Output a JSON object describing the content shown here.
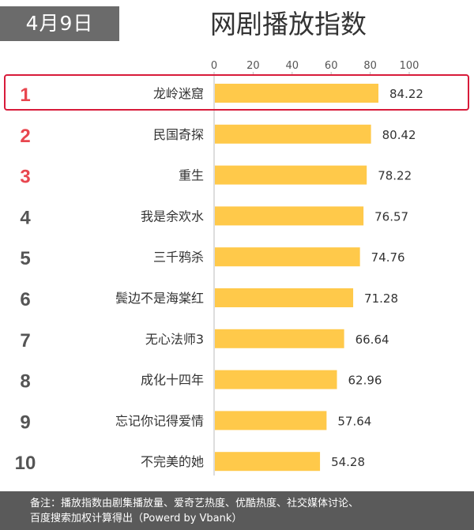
{
  "date_badge": "4月9日",
  "footer": {
    "line1": "备注：播放指数由剧集播放量、爱奇艺热度、优酷热度、社交媒体讨论、",
    "line2": "百度搜索加权计算得出（Powerd by Vbank）"
  },
  "colors": {
    "bar": "#ffc94a",
    "rank_top3": "#e8464f",
    "rank_other": "#555555",
    "highlight_border": "#d81b3a",
    "axis": "#bbbbbb"
  },
  "chart_data": {
    "type": "bar",
    "orientation": "horizontal",
    "title": "网剧播放指数",
    "xlim": [
      0,
      100
    ],
    "ticks": [
      0,
      20,
      40,
      60,
      80,
      100
    ],
    "ranks": [
      "1",
      "2",
      "3",
      "4",
      "5",
      "6",
      "7",
      "8",
      "9",
      "10"
    ],
    "categories": [
      "龙岭迷窟",
      "民国奇探",
      "重生",
      "我是余欢水",
      "三千鸦杀",
      "鬓边不是海棠红",
      "无心法师3",
      "成化十四年",
      "忘记你记得爱情",
      "不完美的她"
    ],
    "values": [
      84.22,
      80.42,
      78.22,
      76.57,
      74.76,
      71.28,
      66.64,
      62.96,
      57.64,
      54.28
    ],
    "value_labels": [
      "84.22",
      "80.42",
      "78.22",
      "76.57",
      "74.76",
      "71.28",
      "66.64",
      "62.96",
      "57.64",
      "54.28"
    ],
    "highlighted_rank": 1
  }
}
